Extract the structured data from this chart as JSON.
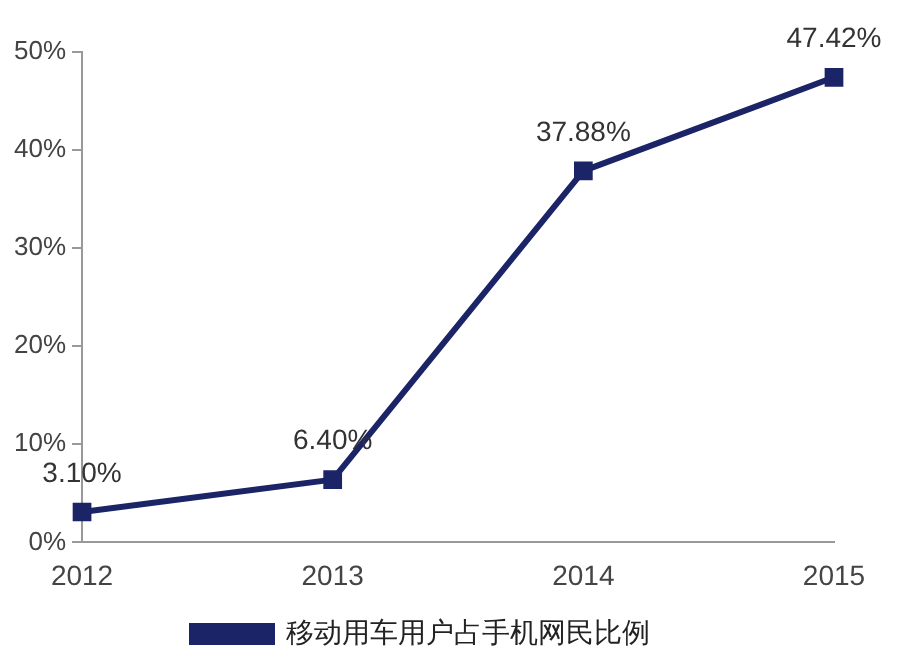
{
  "chart_data": {
    "type": "line",
    "categories": [
      "2012",
      "2013",
      "2014",
      "2015"
    ],
    "series": [
      {
        "name": "移动用车用户占手机网民比例",
        "color": "#1b2466",
        "values": [
          3.1,
          6.4,
          37.88,
          47.42
        ],
        "value_labels": [
          "3.10%",
          "6.40%",
          "37.88%",
          "47.42%"
        ]
      }
    ],
    "ylim": [
      0,
      50
    ],
    "yticks": [
      {
        "value": 0,
        "label": "0%"
      },
      {
        "value": 10,
        "label": "10%"
      },
      {
        "value": 20,
        "label": "20%"
      },
      {
        "value": 30,
        "label": "30%"
      },
      {
        "value": 40,
        "label": "40%"
      },
      {
        "value": 50,
        "label": "50%"
      }
    ],
    "grid": false,
    "legend": "bottom",
    "marker": "square",
    "line_style": "solid"
  }
}
